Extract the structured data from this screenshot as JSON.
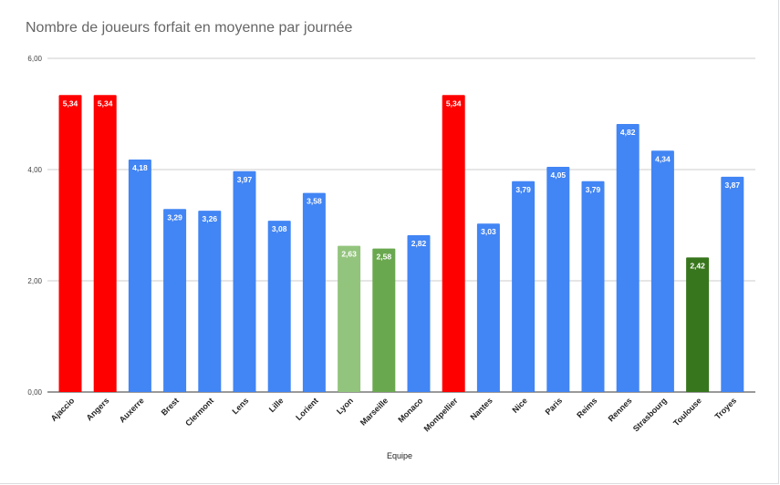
{
  "chart_data": {
    "type": "bar",
    "title": "Nombre de joueurs forfait en moyenne par journée",
    "xlabel": "Equipe",
    "ylabel": "",
    "ylim": [
      0,
      6
    ],
    "yticks": [
      "0,00",
      "2,00",
      "4,00",
      "6,00"
    ],
    "grid": true,
    "legend": "none",
    "categories": [
      "Ajaccio",
      "Angers",
      "Auxerre",
      "Brest",
      "Clermont",
      "Lens",
      "Lille",
      "Lorient",
      "Lyon",
      "Marseille",
      "Monaco",
      "Montpellier",
      "Nantes",
      "Nice",
      "Paris",
      "Reims",
      "Rennes",
      "Strasbourg",
      "Toulouse",
      "Troyes"
    ],
    "values": [
      5.34,
      5.34,
      4.18,
      3.29,
      3.26,
      3.97,
      3.08,
      3.58,
      2.63,
      2.58,
      2.82,
      5.34,
      3.03,
      3.79,
      4.05,
      3.79,
      4.82,
      4.34,
      2.42,
      3.87
    ],
    "labels": [
      "5,34",
      "5,34",
      "4,18",
      "3,29",
      "3,26",
      "3,97",
      "3,08",
      "3,58",
      "2,63",
      "2,58",
      "2,82",
      "5,34",
      "3,03",
      "3,79",
      "4,05",
      "3,79",
      "4,82",
      "4,34",
      "2,42",
      "3,87"
    ],
    "colors": [
      "#ff0000",
      "#ff0000",
      "#4285f4",
      "#4285f4",
      "#4285f4",
      "#4285f4",
      "#4285f4",
      "#4285f4",
      "#93c47d",
      "#6aa84f",
      "#4285f4",
      "#ff0000",
      "#4285f4",
      "#4285f4",
      "#4285f4",
      "#4285f4",
      "#4285f4",
      "#4285f4",
      "#38761d",
      "#4285f4"
    ]
  }
}
